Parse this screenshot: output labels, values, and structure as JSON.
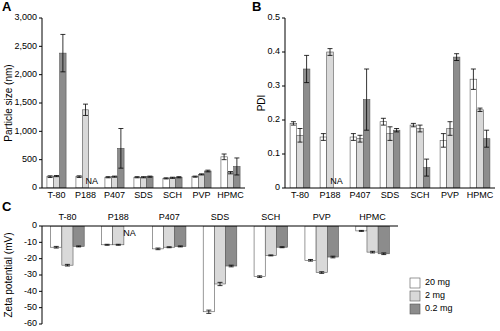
{
  "chart_data": [
    {
      "type": "bar",
      "title": "A",
      "y_label": "Particle size (nm)",
      "categories": [
        "T-80",
        "P188",
        "P407",
        "SDS",
        "SCH",
        "PVP",
        "HPMC"
      ],
      "series": [
        {
          "name": "20 mg",
          "color": "#ffffff",
          "values": [
            200,
            200,
            190,
            190,
            170,
            200,
            550
          ],
          "errors": [
            15,
            15,
            10,
            10,
            10,
            10,
            50
          ]
        },
        {
          "name": "2 mg",
          "color": "#d9d9d9",
          "values": [
            210,
            1380,
            200,
            190,
            180,
            240,
            270
          ],
          "errors": [
            10,
            100,
            10,
            10,
            10,
            10,
            20
          ]
        },
        {
          "name": "0.2 mg",
          "color": "#8c8c8c",
          "values": [
            2380,
            null,
            700,
            200,
            190,
            300,
            380
          ],
          "errors": [
            330,
            null,
            350,
            10,
            10,
            15,
            150
          ]
        }
      ],
      "annotations": [
        {
          "text": "NA",
          "category": "P188",
          "series": "0.2 mg"
        }
      ],
      "ylim": [
        0,
        3000
      ],
      "yticks": [
        0,
        500,
        {
          "value": 1000,
          "label": "1,000"
        },
        {
          "value": 1500,
          "label": "1,500"
        },
        {
          "value": 2000,
          "label": "2,000"
        },
        {
          "value": 2500,
          "label": "2,500"
        },
        {
          "value": 3000,
          "label": "3,000"
        }
      ],
      "grid": false
    },
    {
      "type": "bar",
      "title": "B",
      "y_label": "PDI",
      "categories": [
        "T-80",
        "P188",
        "P407",
        "SDS",
        "SCH",
        "PVP",
        "HPMC"
      ],
      "series": [
        {
          "name": "20 mg",
          "color": "#ffffff",
          "values": [
            0.19,
            0.15,
            0.15,
            0.195,
            0.185,
            0.14,
            0.32
          ],
          "errors": [
            0.005,
            0.01,
            0.01,
            0.01,
            0.005,
            0.02,
            0.03
          ]
        },
        {
          "name": "2 mg",
          "color": "#d9d9d9",
          "values": [
            0.155,
            0.4,
            0.145,
            0.16,
            0.175,
            0.175,
            0.23
          ],
          "errors": [
            0.02,
            0.01,
            0.01,
            0.02,
            0.01,
            0.02,
            0.005
          ]
        },
        {
          "name": "0.2 mg",
          "color": "#8c8c8c",
          "values": [
            0.35,
            null,
            0.26,
            0.17,
            0.06,
            0.385,
            0.145
          ],
          "errors": [
            0.04,
            null,
            0.09,
            0.005,
            0.025,
            0.01,
            0.025
          ]
        }
      ],
      "annotations": [
        {
          "text": "NA",
          "category": "P188",
          "series": "0.2 mg"
        }
      ],
      "ylim": [
        0,
        0.5
      ],
      "yticks": [
        0,
        0.1,
        0.2,
        0.3,
        0.4,
        0.5
      ],
      "grid": false
    },
    {
      "type": "bar",
      "title": "C",
      "y_label": "Zeta potential (mV)",
      "categories": [
        "T-80",
        "P188",
        "P407",
        "SDS",
        "SCH",
        "PVP",
        "HPMC"
      ],
      "series": [
        {
          "name": "20 mg",
          "color": "#ffffff",
          "values": [
            -13,
            -11.5,
            -14,
            -52.5,
            -31,
            -21,
            -3
          ],
          "errors": [
            0.5,
            0.3,
            0.5,
            1,
            0.5,
            0.5,
            0.3
          ]
        },
        {
          "name": "2 mg",
          "color": "#d9d9d9",
          "values": [
            -24,
            -11.5,
            -13,
            -35.5,
            -18,
            -28.5,
            -16
          ],
          "errors": [
            0.5,
            0.3,
            0.3,
            1,
            0.3,
            0.5,
            0.5
          ]
        },
        {
          "name": "0.2 mg",
          "color": "#8c8c8c",
          "values": [
            -12.5,
            null,
            -12.5,
            -24.5,
            -13,
            -19,
            -17
          ],
          "errors": [
            0.3,
            null,
            0.3,
            0.5,
            0.3,
            0.5,
            0.5
          ]
        }
      ],
      "annotations": [
        {
          "text": "NA",
          "category": "P188",
          "series": "0.2 mg"
        }
      ],
      "ylim": [
        -60,
        0
      ],
      "yticks": [
        -60,
        -50,
        -40,
        -30,
        -20,
        -10,
        0
      ],
      "grid": false,
      "legend": "right"
    }
  ]
}
